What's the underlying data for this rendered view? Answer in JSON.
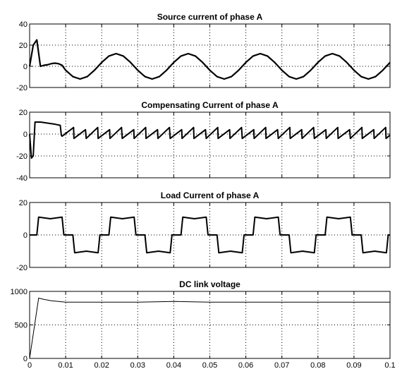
{
  "chart_data": [
    {
      "type": "line",
      "title": "Source current of phase A",
      "color": "#000000",
      "x": [
        0,
        0.001,
        0.002,
        0.003,
        0.004,
        0.005,
        0.006,
        0.007,
        0.008,
        0.009,
        0.01,
        0.012,
        0.014,
        0.016,
        0.018,
        0.02,
        0.022,
        0.024,
        0.026,
        0.028,
        0.03,
        0.032,
        0.034,
        0.036,
        0.038,
        0.04,
        0.042,
        0.044,
        0.046,
        0.048,
        0.05,
        0.052,
        0.054,
        0.056,
        0.058,
        0.06,
        0.062,
        0.064,
        0.066,
        0.068,
        0.07,
        0.072,
        0.074,
        0.076,
        0.078,
        0.08,
        0.082,
        0.084,
        0.086,
        0.088,
        0.09,
        0.092,
        0.094,
        0.096,
        0.098,
        0.1
      ],
      "values": [
        0,
        20,
        25,
        0,
        1,
        1.5,
        2.5,
        3,
        2.5,
        1,
        -3.7,
        -9.7,
        -12,
        -9.7,
        -3.7,
        3.7,
        9.7,
        12,
        9.7,
        3.7,
        -3.7,
        -9.7,
        -12,
        -9.7,
        -3.7,
        3.7,
        9.7,
        12,
        9.7,
        3.7,
        -3.7,
        -9.7,
        -12,
        -9.7,
        -3.7,
        3.7,
        9.7,
        12,
        9.7,
        3.7,
        -3.7,
        -9.7,
        -12,
        -9.7,
        -3.7,
        3.7,
        9.7,
        12,
        9.7,
        3.7,
        -3.7,
        -9.7,
        -12,
        -9.7,
        -3.7,
        3.7
      ],
      "xlim": [
        0,
        0.1
      ],
      "xticks": [
        0,
        0.01,
        0.02,
        0.03,
        0.04,
        0.05,
        0.06,
        0.07,
        0.08,
        0.09,
        0.1
      ],
      "ylim": [
        -20,
        40
      ],
      "yticks": [
        -20,
        0,
        20,
        40
      ],
      "grid": true
    },
    {
      "type": "line",
      "title": "Compensating Current of phase A",
      "color": "#000000",
      "x": [
        0,
        0.0005,
        0.001,
        0.0015,
        0.003,
        0.005,
        0.007,
        0.0085,
        0.0088,
        0.009,
        0.0122,
        0.0123,
        0.0155,
        0.0157,
        0.0189,
        0.019,
        0.0222,
        0.0223,
        0.0255,
        0.0257,
        0.0289,
        0.029,
        0.0322,
        0.0323,
        0.0355,
        0.0356,
        0.0388,
        0.039,
        0.0422,
        0.0423,
        0.0455,
        0.0456,
        0.0488,
        0.049,
        0.0522,
        0.0523,
        0.0555,
        0.0556,
        0.0588,
        0.059,
        0.0622,
        0.0623,
        0.0655,
        0.0656,
        0.0688,
        0.069,
        0.0722,
        0.0723,
        0.0755,
        0.0756,
        0.0788,
        0.079,
        0.0822,
        0.0823,
        0.0855,
        0.0856,
        0.0888,
        0.089,
        0.0922,
        0.0923,
        0.0955,
        0.0956,
        0.0988,
        0.0989,
        0.1
      ],
      "values": [
        0,
        -22,
        -20,
        11,
        11,
        10,
        9,
        8,
        -1,
        -2,
        6,
        -4,
        4,
        -4,
        6,
        -4,
        4,
        -4,
        6,
        -4,
        4,
        -4,
        6,
        -4,
        4,
        -4,
        6,
        -4,
        4,
        -4,
        6,
        -4,
        4,
        -4,
        6,
        -4,
        4,
        -4,
        6,
        -4,
        4,
        -4,
        6,
        -4,
        4,
        -4,
        6,
        -4,
        4,
        -4,
        6,
        -4,
        4,
        -4,
        6,
        -4,
        4,
        -4,
        6,
        -4,
        4,
        -4,
        6,
        -4,
        -1
      ],
      "xlim": [
        0,
        0.1
      ],
      "xticks": [
        0,
        0.01,
        0.02,
        0.03,
        0.04,
        0.05,
        0.06,
        0.07,
        0.08,
        0.09,
        0.1
      ],
      "ylim": [
        -40,
        20
      ],
      "yticks": [
        -40,
        -20,
        0,
        20
      ],
      "grid": true
    },
    {
      "type": "line",
      "title": "Load Current of phase A",
      "color": "#000000",
      "x": [
        0,
        0.002,
        0.0025,
        0.00575,
        0.009,
        0.0095,
        0.012,
        0.0125,
        0.01575,
        0.019,
        0.0195,
        0.022,
        0.0225,
        0.02575,
        0.029,
        0.0295,
        0.032,
        0.0325,
        0.03575,
        0.039,
        0.0395,
        0.042,
        0.0425,
        0.04575,
        0.049,
        0.0495,
        0.052,
        0.0525,
        0.05575,
        0.059,
        0.0595,
        0.062,
        0.0625,
        0.06575,
        0.069,
        0.0695,
        0.072,
        0.0725,
        0.07575,
        0.079,
        0.0795,
        0.082,
        0.0825,
        0.08575,
        0.089,
        0.0895,
        0.092,
        0.0925,
        0.09575,
        0.099,
        0.0995,
        0.1
      ],
      "values": [
        0,
        0,
        11,
        10,
        11,
        0,
        0,
        -11,
        -10,
        -11,
        0,
        0,
        11,
        10,
        11,
        0,
        0,
        -11,
        -10,
        -11,
        0,
        0,
        11,
        10,
        11,
        0,
        0,
        -11,
        -10,
        -11,
        0,
        0,
        11,
        10,
        11,
        0,
        0,
        -11,
        -10,
        -11,
        0,
        0,
        11,
        10,
        11,
        0,
        0,
        -11,
        -10,
        -11,
        0,
        0
      ],
      "xlim": [
        0,
        0.1
      ],
      "xticks": [
        0,
        0.01,
        0.02,
        0.03,
        0.04,
        0.05,
        0.06,
        0.07,
        0.08,
        0.09,
        0.1
      ],
      "ylim": [
        -20,
        20
      ],
      "yticks": [
        -20,
        0,
        20
      ],
      "grid": true
    },
    {
      "type": "line",
      "title": "DC link voltage",
      "color": "#000000",
      "x": [
        0,
        0.0025,
        0.004,
        0.006,
        0.008,
        0.01,
        0.03,
        0.035,
        0.04,
        0.045,
        0.05,
        0.1
      ],
      "values": [
        0,
        900,
        880,
        860,
        850,
        840,
        840,
        845,
        850,
        845,
        840,
        840
      ],
      "xlim": [
        0,
        0.1
      ],
      "xticks": [
        0,
        0.01,
        0.02,
        0.03,
        0.04,
        0.05,
        0.06,
        0.07,
        0.08,
        0.09,
        0.1
      ],
      "ylim": [
        0,
        1000
      ],
      "yticks": [
        0,
        500,
        1000
      ],
      "grid": true
    }
  ]
}
